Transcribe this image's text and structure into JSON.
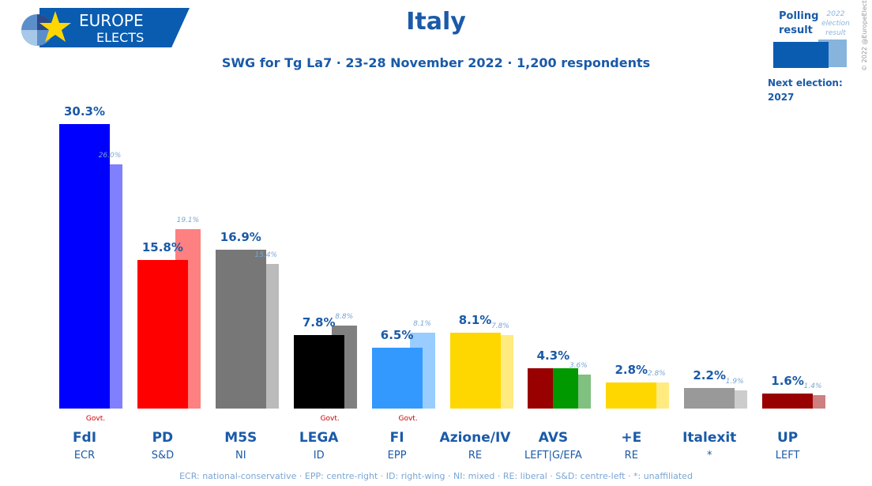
{
  "header": {
    "logo_line1": "EUROPE",
    "logo_line2": "ELECTS",
    "title": "Italy",
    "subtitle": "SWG for Tg La7 · 23-28 November 2022 · 1,200 respondents"
  },
  "legend": {
    "polling": "Polling result",
    "election": "2022 election result",
    "next_election_label": "Next election:",
    "next_election_year": "2027",
    "copyright": "© 2022 @EuropeElects"
  },
  "footnote": "ECR: national-conservative · EPP: centre-right · ID: right-wing · NI: mixed · RE: liberal · S&D: centre-left · *: unaffiliated",
  "chart_data": {
    "type": "bar",
    "ylim": [
      0,
      30.3
    ],
    "categories": [
      "FdI",
      "PD",
      "M5S",
      "LEGA",
      "FI",
      "Azione/IV",
      "AVS",
      "+E",
      "Italexit",
      "UP"
    ],
    "groups": [
      "ECR",
      "S&D",
      "NI",
      "ID",
      "EPP",
      "RE",
      "LEFT|G/EFA",
      "RE",
      "*",
      "LEFT"
    ],
    "govt": [
      true,
      false,
      false,
      true,
      true,
      false,
      false,
      false,
      false,
      false
    ],
    "govt_label": "Govt.",
    "series": [
      {
        "name": "Polling result",
        "values": [
          30.3,
          15.8,
          16.9,
          7.8,
          6.5,
          8.1,
          4.3,
          2.8,
          2.2,
          1.6
        ],
        "labels": [
          "30.3%",
          "15.8%",
          "16.9%",
          "7.8%",
          "6.5%",
          "8.1%",
          "4.3%",
          "2.8%",
          "2.2%",
          "1.6%"
        ]
      },
      {
        "name": "2022 election result",
        "values": [
          26.0,
          19.1,
          15.4,
          8.8,
          8.1,
          7.8,
          3.6,
          2.8,
          1.9,
          1.4
        ],
        "labels": [
          "26.0%",
          "19.1%",
          "15.4%",
          "8.8%",
          "8.1%",
          "7.8%",
          "3.6%",
          "2.8%",
          "1.9%",
          "1.4%"
        ]
      }
    ],
    "colors": [
      [
        "#0000ff"
      ],
      [
        "#ff0000"
      ],
      [
        "#777777"
      ],
      [
        "#000000"
      ],
      [
        "#3399ff"
      ],
      [
        "#ffd700"
      ],
      [
        "#990000",
        "#009900"
      ],
      [
        "#ffd700"
      ],
      [
        "#999999"
      ],
      [
        "#990000"
      ]
    ],
    "prev_colors": [
      "#8080ff",
      "#ff8080",
      "#bbbbbb",
      "#808080",
      "#99ccff",
      "#ffeb80",
      "#80c080",
      "#ffeb80",
      "#cccccc",
      "#cc8080"
    ]
  }
}
